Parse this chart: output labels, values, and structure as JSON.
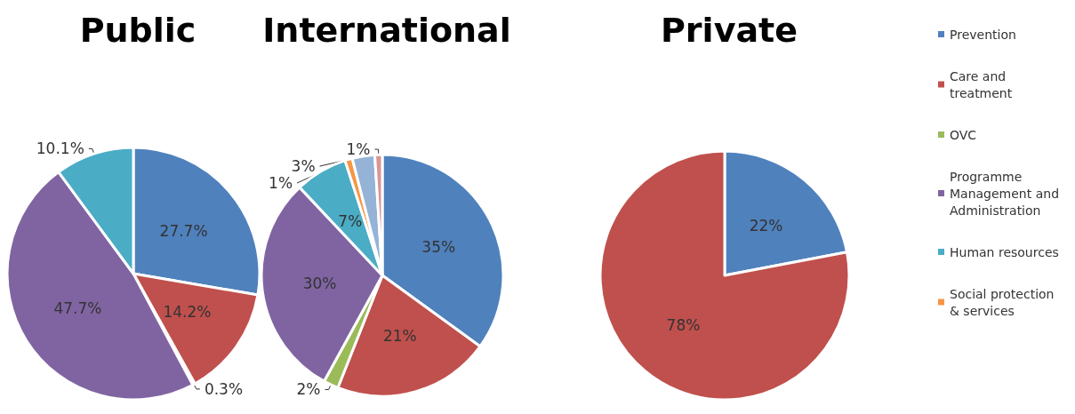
{
  "chart_data": {
    "type": "pie",
    "categories": [
      "Prevention",
      "Care and treatment",
      "OVC",
      "Programme Management and Administration",
      "Human resources",
      "Social protection & services",
      null,
      null
    ],
    "colors": [
      "#4f81bd",
      "#c0504d",
      "#9bbb59",
      "#8064a2",
      "#4bacc6",
      "#f79646",
      "#95b3d7",
      "#d99694"
    ],
    "legend": "right",
    "series": [
      {
        "name": "Public",
        "values": [
          27.7,
          14.2,
          0.3,
          47.7,
          10.1,
          null,
          null,
          null
        ],
        "value_labels": [
          "27.7%",
          "14.2%",
          "0.3%",
          "47.7%",
          "10.1%",
          null,
          null,
          null
        ]
      },
      {
        "name": "International",
        "values": [
          35,
          21,
          2,
          30,
          7,
          1,
          3,
          1
        ],
        "value_labels": [
          "35%",
          "21%",
          "2%",
          "30%",
          "7%",
          "1%",
          "3%",
          "1%"
        ]
      },
      {
        "name": "Private",
        "values": [
          22,
          78,
          null,
          null,
          null,
          null,
          null,
          null
        ],
        "value_labels": [
          "22%",
          "78%",
          null,
          null,
          null,
          null,
          null,
          null
        ]
      }
    ]
  }
}
